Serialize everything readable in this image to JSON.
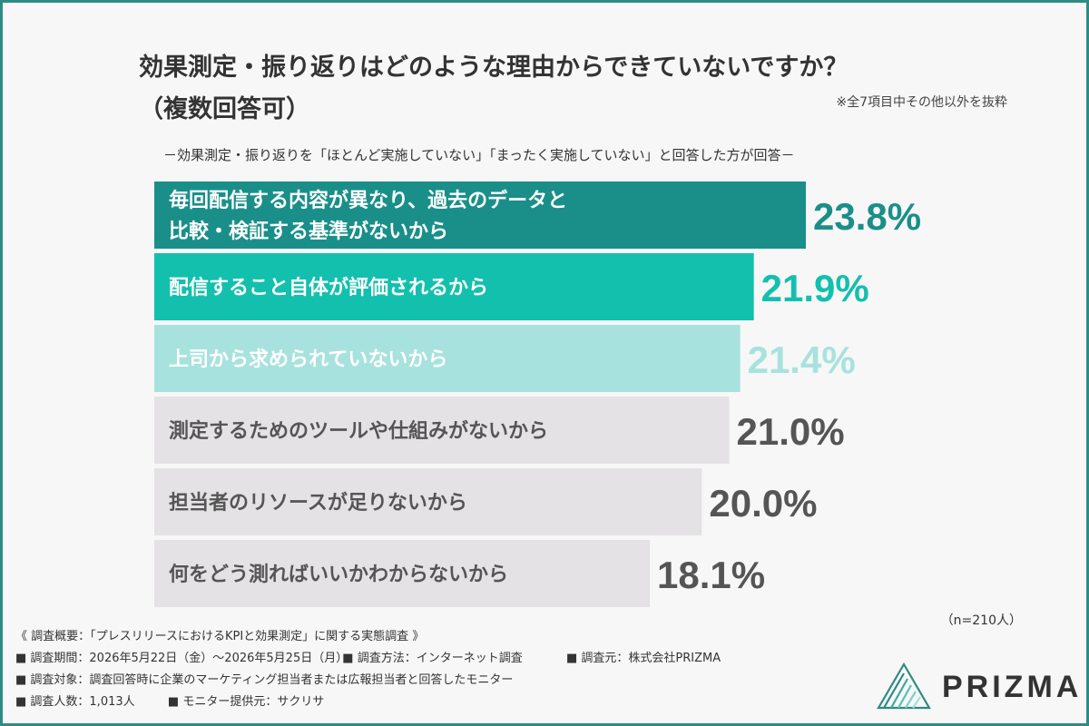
{
  "title_line1": "効果測定・振り返りはどのような理由からできていないですか？",
  "title_line2": "（複数回答可）",
  "note": "※全7項目中その他以外を抜粋",
  "subtitle": "－効果測定・振り返りを「ほとんど実施していない」「まったく実施していない」と回答した方が回答－",
  "sample_size": "（n=210人）",
  "chart_data": {
    "type": "bar",
    "orientation": "horizontal",
    "title": "効果測定・振り返りはどのような理由からできていないですか？（複数回答可）",
    "categories": [
      [
        "毎回配信する内容が異なり、過去のデータと",
        "比較・検証する基準がないから"
      ],
      [
        "配信すること自体が評価されるから"
      ],
      [
        "上司から求められていないから"
      ],
      [
        "測定するためのツールや仕組みがないから"
      ],
      [
        "担当者のリソースが足りないから"
      ],
      [
        "何をどう測ればいいかわからないから"
      ]
    ],
    "values": [
      23.8,
      21.9,
      21.4,
      21.0,
      20.0,
      18.1
    ],
    "value_labels": [
      "23.8%",
      "21.9%",
      "21.4%",
      "21.0%",
      "20.0%",
      "18.1%"
    ],
    "unit": "%",
    "xlim": [
      0,
      23.8
    ],
    "bar_colors": [
      "#1a8f8a",
      "#13c0ad",
      "#a8e2de",
      "#e4e2e4",
      "#e4e2e4",
      "#e4e2e4"
    ],
    "label_colors": [
      "#ffffff",
      "#ffffff",
      "#ffffff",
      "#555555",
      "#555555",
      "#555555"
    ],
    "value_colors": [
      "#1a8f8a",
      "#13c0ad",
      "#a8e2de",
      "#555555",
      "#555555",
      "#555555"
    ],
    "grid": false,
    "legend": "none"
  },
  "footer": {
    "heading": "《 調査概要：「プレスリリースにおけるKPIと効果測定」に関する実態調査 》",
    "period": "■ 調査期間：2026年5月22日（金）～2026年5月25日（月）",
    "method": "■ 調査方法：インターネット調査",
    "source": "■ 調査元：株式会社PRIZMA",
    "target": "■ 調査対象：調査回答時に企業のマーケティング担当者または広報担当者と回答したモニター",
    "count": "■ 調査人数：1,013人",
    "provider": "■ モニター提供元：サクリサ"
  },
  "logo": {
    "text": "PRIZMA",
    "accent": "#2e8b84"
  }
}
